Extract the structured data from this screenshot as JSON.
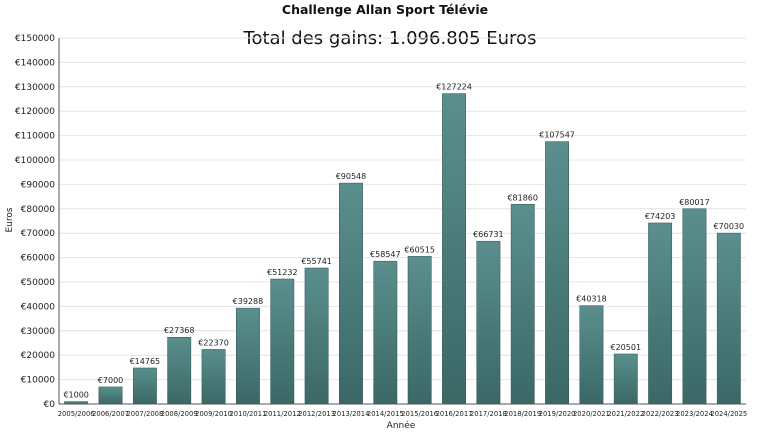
{
  "chart_data": {
    "type": "bar",
    "title": "Challenge Allan Sport Télévie",
    "subtitle": "Total des gains: 1.096.805 Euros",
    "xlabel": "Année",
    "ylabel": "Euros",
    "ylim": [
      0,
      150000
    ],
    "y_ticks": [
      "€0",
      "€10000",
      "€20000",
      "€30000",
      "€40000",
      "€50000",
      "€60000",
      "€70000",
      "€80000",
      "€90000",
      "€100000",
      "€110000",
      "€120000",
      "€130000",
      "€140000",
      "€150000"
    ],
    "categories": [
      "2005/2006",
      "2006/2007",
      "2007/2008",
      "2008/2009",
      "2009/2010",
      "2010/2011",
      "2011/2012",
      "2012/2013",
      "2013/2014",
      "2014/2015",
      "2015/2016",
      "2016/2017",
      "2017/2018",
      "2018/2019",
      "2019/2020",
      "2020/2021",
      "2021/2022",
      "2022/2023",
      "2023/2024",
      "2024/2025"
    ],
    "values": [
      1000,
      7000,
      14765,
      27368,
      22370,
      39288,
      51232,
      55741,
      90548,
      58547,
      60515,
      127224,
      66731,
      81860,
      107547,
      40318,
      20501,
      74203,
      80017,
      70030
    ],
    "data_labels": [
      "€1000",
      "€7000",
      "€14765",
      "€27368",
      "€22370",
      "€39288",
      "€51232",
      "€55741",
      "€90548",
      "€58547",
      "€60515",
      "€127224",
      "€66731",
      "€81860",
      "€107547",
      "€40318",
      "€20501",
      "€74203",
      "€80017",
      "€70030"
    ],
    "grid": true,
    "legend": "none",
    "colors": {
      "bar_top": "#5a8f8d",
      "bar_bottom": "#3b6866",
      "bar_edge": "#2f5553",
      "grid": "#e4e4e4",
      "axis": "#555555",
      "text": "#222222"
    }
  }
}
